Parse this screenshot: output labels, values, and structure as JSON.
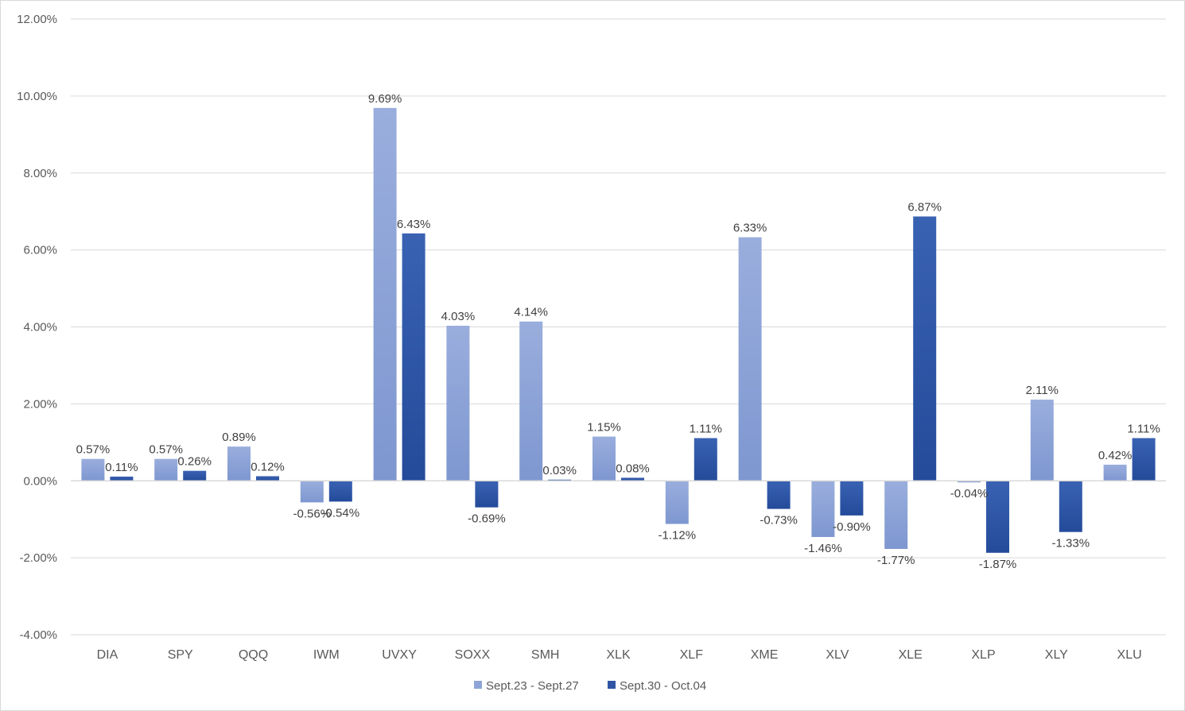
{
  "chart_data": {
    "type": "bar",
    "title": "",
    "xlabel": "",
    "ylabel": "",
    "ylim": [
      -4,
      12
    ],
    "yticks": [
      -4,
      -2,
      0,
      2,
      4,
      6,
      8,
      10,
      12
    ],
    "ytick_labels": [
      "-4.00%",
      "-2.00%",
      "0.00%",
      "2.00%",
      "4.00%",
      "6.00%",
      "8.00%",
      "10.00%",
      "12.00%"
    ],
    "grid": true,
    "legend_position": "bottom",
    "categories": [
      "DIA",
      "SPY",
      "QQQ",
      "IWM",
      "UVXY",
      "SOXX",
      "SMH",
      "XLK",
      "XLF",
      "XME",
      "XLV",
      "XLE",
      "XLP",
      "XLY",
      "XLU"
    ],
    "series": [
      {
        "name": "Sept.23 - Sept.27",
        "color": "#8FA5D8",
        "values": [
          0.57,
          0.57,
          0.89,
          -0.56,
          9.69,
          4.03,
          4.14,
          1.15,
          -1.12,
          6.33,
          -1.46,
          -1.77,
          -0.04,
          2.11,
          0.42
        ],
        "labels": [
          "0.57%",
          "0.57%",
          "0.89%",
          "-0.56%",
          "9.69%",
          "4.03%",
          "4.14%",
          "1.15%",
          "-1.12%",
          "6.33%",
          "-1.46%",
          "-1.77%",
          "-0.04%",
          "2.11%",
          "0.42%"
        ]
      },
      {
        "name": "Sept.30 - Oct.04",
        "color": "#2F55A4",
        "values": [
          0.11,
          0.26,
          0.12,
          -0.54,
          6.43,
          -0.69,
          0.03,
          0.08,
          1.11,
          -0.73,
          -0.9,
          6.87,
          -1.87,
          -1.33,
          1.11
        ],
        "labels": [
          "0.11%",
          "0.26%",
          "0.12%",
          "-0.54%",
          "6.43%",
          "-0.69%",
          "0.03%",
          "0.08%",
          "1.11%",
          "-0.73%",
          "-0.90%",
          "6.87%",
          "-1.87%",
          "-1.33%",
          "1.11%"
        ]
      }
    ]
  }
}
